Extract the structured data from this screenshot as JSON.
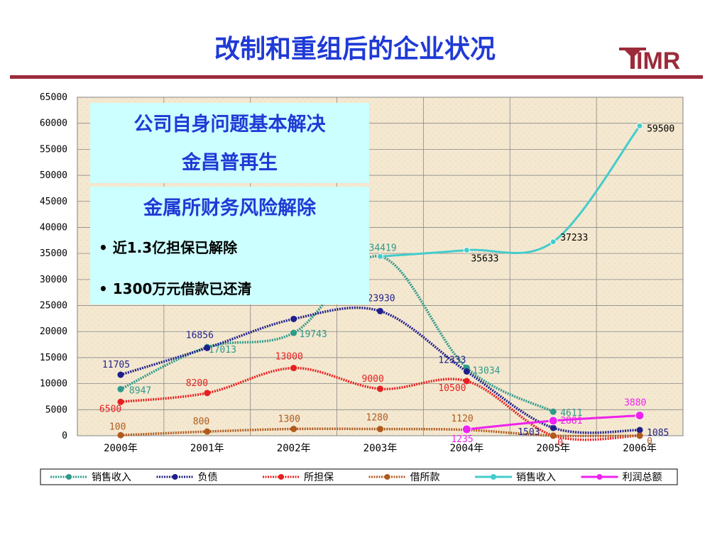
{
  "slide": {
    "title": "改制和重组后的企业状况"
  },
  "logo": {
    "text": "IMR",
    "color": "#9c2b3a"
  },
  "box1": {
    "line1": "公司自身问题基本解决",
    "line2": "金昌普再生"
  },
  "box2": {
    "title": "金属所财务风险解除",
    "bullets": [
      "近1.3亿担保已解除",
      "1300万元借款已还清"
    ]
  },
  "chart_data": {
    "type": "line",
    "categories": [
      "2000年",
      "2001年",
      "2002年",
      "2003年",
      "2004年",
      "2005年",
      "2006年"
    ],
    "ylim": [
      0,
      65000
    ],
    "yticks": [
      0,
      5000,
      10000,
      15000,
      20000,
      25000,
      30000,
      35000,
      40000,
      45000,
      50000,
      55000,
      60000,
      65000
    ],
    "grid": true,
    "legend_position": "bottom",
    "series": [
      {
        "name": "销售收入",
        "color": "#2e9a8a",
        "style": "dotted",
        "values": [
          8947,
          17013,
          19743,
          34419,
          13034,
          4611,
          null
        ],
        "labels": [
          "8947",
          "17013",
          "19743",
          "34419",
          "13034",
          "4611",
          ""
        ]
      },
      {
        "name": "负债",
        "color": "#1f1f8c",
        "style": "dotted",
        "values": [
          11705,
          16856,
          22418,
          23930,
          12333,
          1503,
          1085
        ],
        "labels": [
          "11705",
          "16856",
          "",
          "23930",
          "12333",
          "1503",
          "1085"
        ]
      },
      {
        "name": "所担保",
        "color": "#e62020",
        "style": "dotted",
        "values": [
          6500,
          8200,
          13000,
          9000,
          10500,
          0,
          0
        ],
        "labels": [
          "6500",
          "8200",
          "13000",
          "9000",
          "10500",
          "0",
          ""
        ]
      },
      {
        "name": "借所款",
        "color": "#b05a1e",
        "style": "dotted",
        "values": [
          100,
          800,
          1300,
          1280,
          1120,
          0,
          0
        ],
        "labels": [
          "100",
          "800",
          "1300",
          "1280",
          "1120",
          "",
          "0"
        ]
      },
      {
        "name": "销售收入",
        "color": "#44cccc",
        "style": "solid",
        "values": [
          null,
          null,
          null,
          34419,
          35633,
          37233,
          59500
        ],
        "labels": [
          "",
          "",
          "",
          "",
          "35633",
          "37233",
          "59500"
        ]
      },
      {
        "name": "利润总额",
        "color": "#ee22ee",
        "style": "solid",
        "values": [
          null,
          null,
          null,
          null,
          1235,
          2881,
          3880
        ],
        "labels": [
          "",
          "",
          "",
          "",
          "1235",
          "2881",
          "3880"
        ]
      }
    ]
  }
}
